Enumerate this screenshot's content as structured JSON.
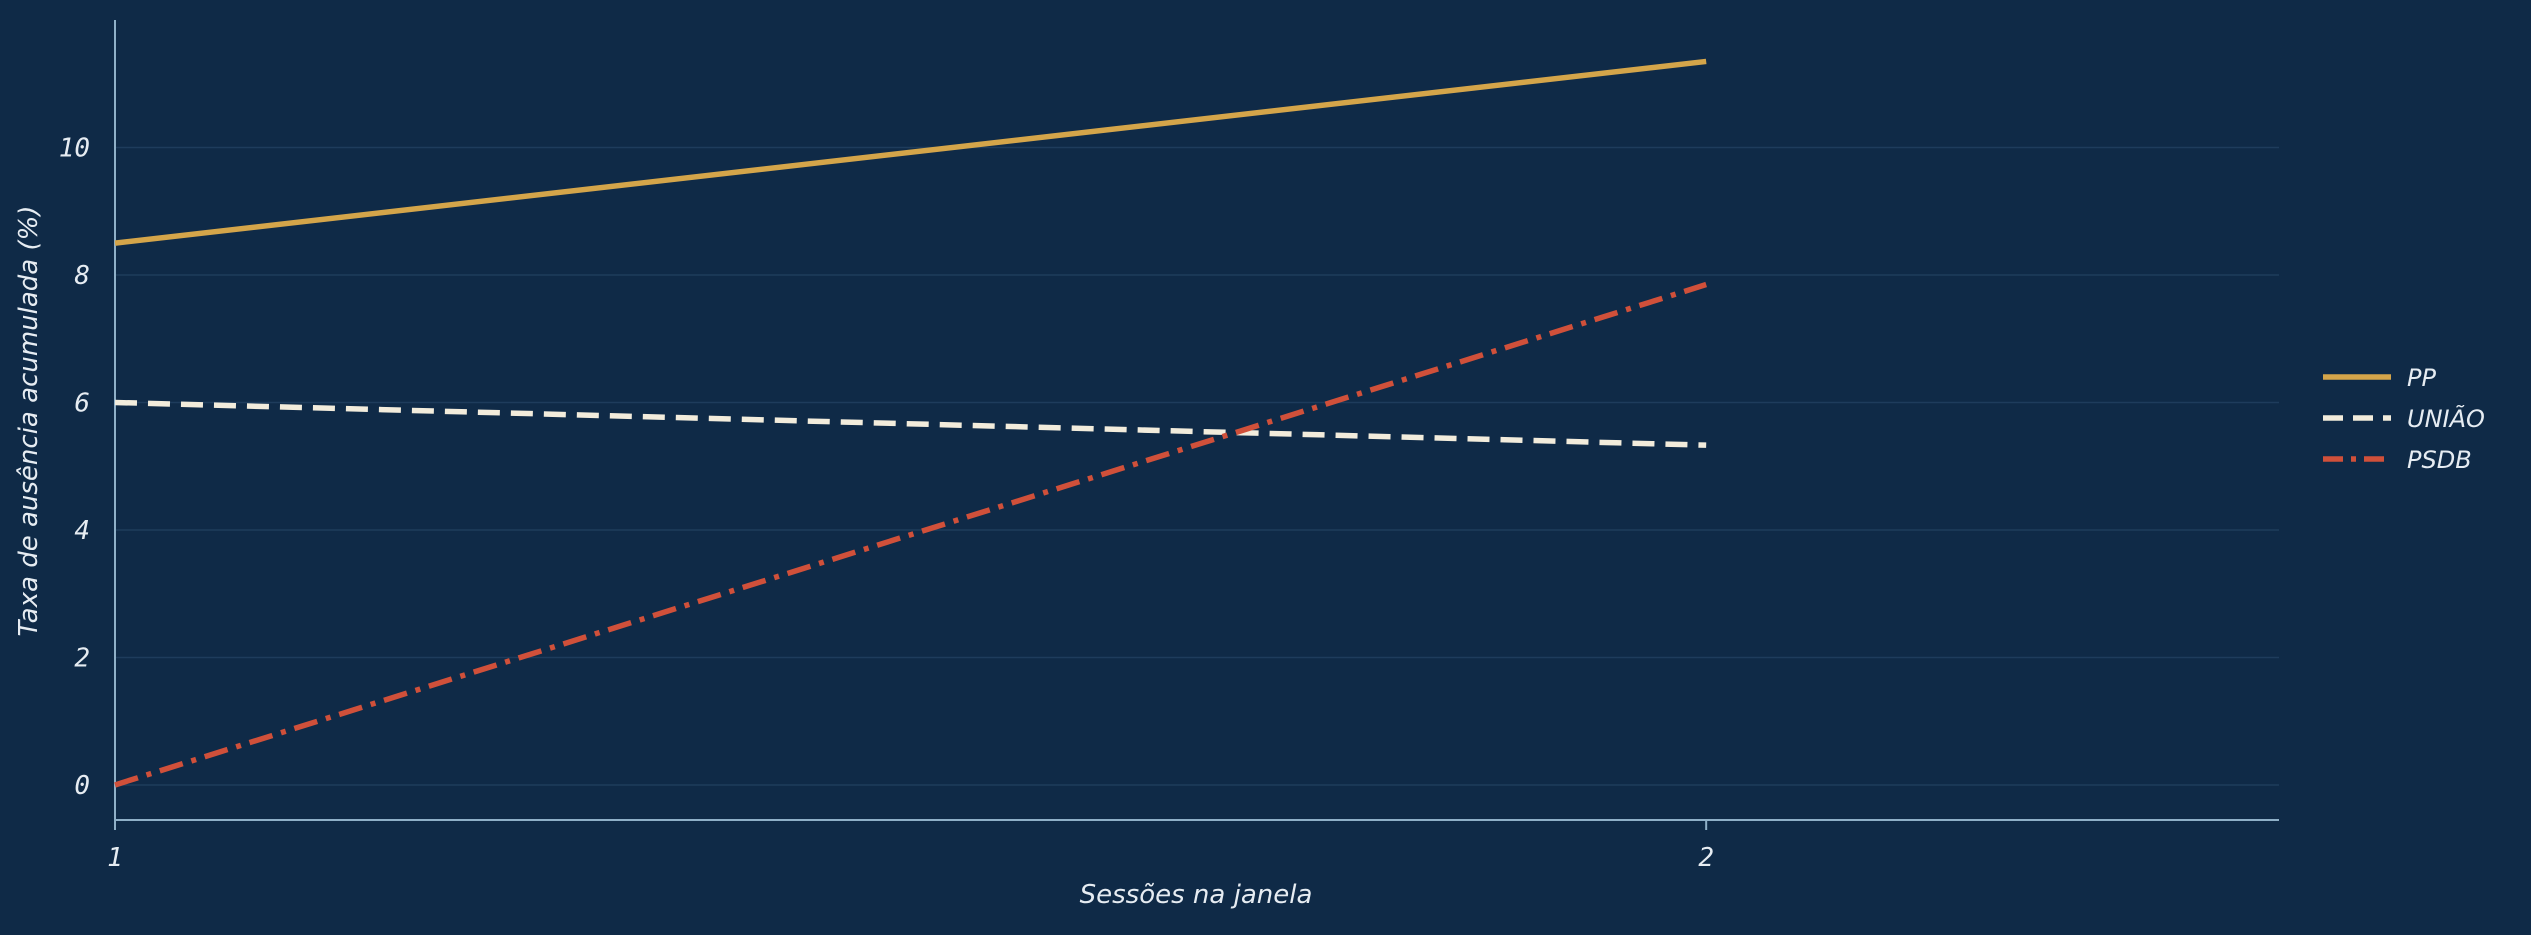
{
  "chart_data": {
    "type": "line",
    "title": "",
    "xlabel": "Sessões na janela",
    "ylabel": "Taxa de ausência acumulada (%)",
    "x": [
      1,
      2
    ],
    "xticks": [
      "1",
      "2"
    ],
    "yticks": [
      "0",
      "2",
      "4",
      "6",
      "8",
      "10"
    ],
    "xlim": [
      1,
      2.36
    ],
    "ylim": [
      -0.55,
      12
    ],
    "grid": true,
    "legend_position": "right",
    "series": [
      {
        "name": "PP",
        "values": [
          8.5,
          11.35
        ],
        "color": "#d4a54a",
        "style": "solid"
      },
      {
        "name": "UNIÃO",
        "values": [
          6.0,
          5.33
        ],
        "color": "#f2ecdc",
        "style": "dashed"
      },
      {
        "name": "PSDB",
        "values": [
          0.0,
          7.85
        ],
        "color": "#d0503a",
        "style": "dashdot"
      }
    ]
  },
  "colors": {
    "background": "#0f2a47",
    "axis": "#8fb0c8",
    "grid": "#1e3c5c"
  }
}
